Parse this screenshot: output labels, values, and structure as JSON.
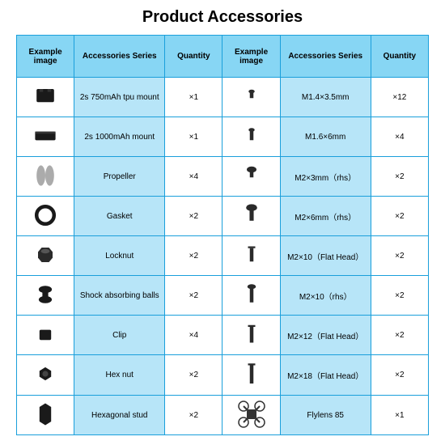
{
  "title": "Product Accessories",
  "headers": [
    "Example image",
    "Accessories Series",
    "Quantity",
    "Example image",
    "Accessories Series",
    "Quantity"
  ],
  "colors": {
    "border": "#1a9fdb",
    "header_bg": "#87d6f4",
    "series_bg": "#b7e5f8",
    "cell_bg": "#ffffff"
  },
  "rows": [
    {
      "l_series": "2s 750mAh tpu mount",
      "l_qty": "×1",
      "r_series": "M1.4×3.5mm",
      "r_qty": "×12"
    },
    {
      "l_series": "2s 1000mAh mount",
      "l_qty": "×1",
      "r_series": "M1.6×6mm",
      "r_qty": "×4"
    },
    {
      "l_series": "Propeller",
      "l_qty": "×4",
      "r_series": "M2×3mm（rhs）",
      "r_qty": "×2"
    },
    {
      "l_series": "Gasket",
      "l_qty": "×2",
      "r_series": "M2×6mm（rhs）",
      "r_qty": "×2"
    },
    {
      "l_series": "Locknut",
      "l_qty": "×2",
      "r_series": "M2×10（Flat Head）",
      "r_qty": "×2"
    },
    {
      "l_series": "Shock absorbing balls",
      "l_qty": "×2",
      "r_series": "M2×10（rhs）",
      "r_qty": "×2"
    },
    {
      "l_series": "Clip",
      "l_qty": "×4",
      "r_series": "M2×12（Flat Head）",
      "r_qty": "×2"
    },
    {
      "l_series": "Hex nut",
      "l_qty": "×2",
      "r_series": "M2×18（Flat Head）",
      "r_qty": "×2"
    },
    {
      "l_series": "Hexagonal stud",
      "l_qty": "×2",
      "r_series": "Flylens 85",
      "r_qty": "×1"
    }
  ],
  "icons_left": [
    "mount-square",
    "mount-wide",
    "propeller",
    "gasket",
    "locknut",
    "shock-ball",
    "clip",
    "hex-nut",
    "hex-stud"
  ],
  "icons_right": [
    "screw-tiny",
    "screw-short",
    "screw-rhs-short",
    "screw-rhs-med",
    "screw-flat-med",
    "screw-rhs-long",
    "screw-flat-long",
    "screw-flat-xlong",
    "drone"
  ]
}
